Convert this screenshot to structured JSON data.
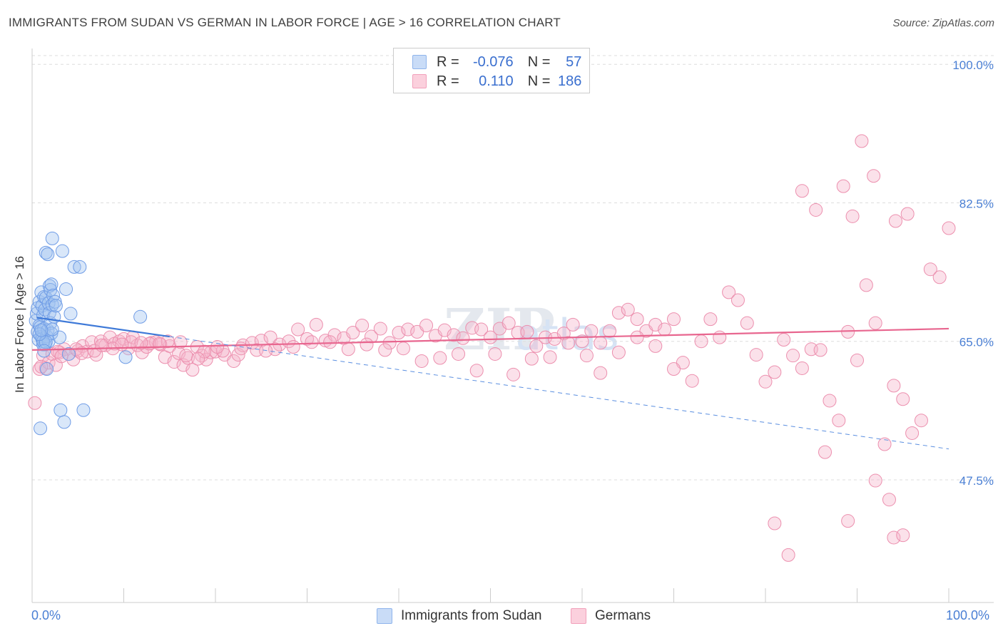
{
  "title": "IMMIGRANTS FROM SUDAN VS GERMAN IN LABOR FORCE | AGE > 16 CORRELATION CHART",
  "source": "Source: ZipAtlas.com",
  "legend": {
    "rows": [
      {
        "r_label": "R =",
        "r_value": "-0.076",
        "n_label": "N =",
        "n_value": "57",
        "color": "#8fb4ec"
      },
      {
        "r_label": "R =",
        "r_value": "0.110",
        "n_label": "N =",
        "n_value": "186",
        "color": "#f2a0bb"
      }
    ]
  },
  "x_min_label": "0.0%",
  "x_max_label": "100.0%",
  "chart_data": {
    "type": "scatter",
    "xlabel": "",
    "ylabel": "In Labor Force | Age > 16",
    "xlim": [
      0,
      100
    ],
    "ylim": [
      32,
      102
    ],
    "y_ticks": [
      100.0,
      82.5,
      65.0,
      47.5
    ],
    "y_tick_labels": [
      "100.0%",
      "82.5%",
      "65.0%",
      "47.5%"
    ],
    "x_tick_labels": [
      "0.0%",
      "100.0%"
    ],
    "grid": true,
    "legend_position": "top-center",
    "series": [
      {
        "name": "Immigrants from Sudan",
        "color": "#8fb4ec",
        "trend": {
          "x": [
            0.5,
            15
          ],
          "y": [
            68.0,
            65.6
          ],
          "dashed_to": [
            100,
            51.4
          ]
        },
        "points": [
          [
            0.4,
            67.6
          ],
          [
            0.5,
            68.5
          ],
          [
            0.6,
            69.2
          ],
          [
            0.6,
            66.2
          ],
          [
            0.7,
            65.2
          ],
          [
            0.8,
            70.0
          ],
          [
            0.8,
            67.0
          ],
          [
            0.9,
            66.8
          ],
          [
            1.0,
            71.2
          ],
          [
            1.0,
            65.6
          ],
          [
            1.1,
            69.5
          ],
          [
            1.1,
            65.3
          ],
          [
            1.2,
            68.3
          ],
          [
            1.2,
            64.6
          ],
          [
            1.3,
            70.6
          ],
          [
            1.3,
            66.6
          ],
          [
            1.4,
            69.0
          ],
          [
            1.4,
            64.6
          ],
          [
            1.5,
            70.5
          ],
          [
            1.5,
            76.2
          ],
          [
            1.6,
            65.6
          ],
          [
            1.6,
            61.5
          ],
          [
            1.7,
            66.4
          ],
          [
            1.7,
            76.0
          ],
          [
            1.8,
            69.8
          ],
          [
            1.8,
            65.0
          ],
          [
            1.9,
            72.0
          ],
          [
            1.9,
            68.6
          ],
          [
            2.0,
            71.5
          ],
          [
            2.0,
            67.3
          ],
          [
            2.1,
            72.2
          ],
          [
            2.1,
            66.0
          ],
          [
            2.2,
            69.6
          ],
          [
            2.2,
            78.0
          ],
          [
            2.3,
            70.8
          ],
          [
            2.4,
            68.1
          ],
          [
            2.5,
            70.0
          ],
          [
            2.6,
            69.5
          ],
          [
            3.0,
            65.5
          ],
          [
            3.1,
            56.3
          ],
          [
            3.3,
            76.4
          ],
          [
            3.5,
            54.8
          ],
          [
            3.7,
            71.6
          ],
          [
            4.0,
            63.4
          ],
          [
            4.2,
            68.5
          ],
          [
            4.6,
            74.4
          ],
          [
            5.2,
            74.4
          ],
          [
            5.6,
            56.3
          ],
          [
            10.2,
            63.0
          ],
          [
            11.8,
            68.1
          ],
          [
            0.9,
            54.0
          ],
          [
            1.2,
            65.0
          ],
          [
            1.5,
            64.9
          ],
          [
            2.2,
            66.5
          ],
          [
            0.8,
            65.9
          ],
          [
            1.0,
            66.4
          ],
          [
            1.3,
            63.8
          ]
        ]
      },
      {
        "name": "Germans",
        "color": "#f2a0bb",
        "trend": {
          "x": [
            0,
            100
          ],
          "y": [
            63.9,
            66.6
          ]
        },
        "points": [
          [
            0.3,
            57.2
          ],
          [
            0.8,
            61.5
          ],
          [
            1.2,
            63.2
          ],
          [
            1.5,
            61.6
          ],
          [
            1.8,
            62.3
          ],
          [
            2.2,
            63.4
          ],
          [
            2.6,
            62.0
          ],
          [
            3.0,
            63.6
          ],
          [
            3.5,
            64.0
          ],
          [
            4.0,
            63.4
          ],
          [
            4.5,
            62.7
          ],
          [
            5.0,
            63.8
          ],
          [
            5.5,
            64.4
          ],
          [
            6.0,
            63.7
          ],
          [
            6.5,
            64.9
          ],
          [
            7.0,
            63.3
          ],
          [
            7.5,
            65.0
          ],
          [
            8.0,
            64.5
          ],
          [
            8.5,
            65.5
          ],
          [
            9.0,
            64.7
          ],
          [
            9.5,
            65.0
          ],
          [
            10.0,
            65.3
          ],
          [
            10.5,
            64.1
          ],
          [
            11.0,
            65.5
          ],
          [
            11.5,
            64.5
          ],
          [
            12.0,
            63.6
          ],
          [
            12.5,
            64.3
          ],
          [
            13.0,
            64.8
          ],
          [
            13.5,
            64.9
          ],
          [
            14.0,
            64.6
          ],
          [
            14.5,
            63.0
          ],
          [
            15.0,
            64.4
          ],
          [
            15.5,
            62.4
          ],
          [
            16.0,
            63.5
          ],
          [
            16.5,
            62.0
          ],
          [
            17.0,
            62.9
          ],
          [
            17.5,
            61.4
          ],
          [
            18.0,
            64.3
          ],
          [
            18.5,
            63.2
          ],
          [
            19.0,
            62.7
          ],
          [
            19.5,
            63.6
          ],
          [
            20.0,
            63.7
          ],
          [
            21.0,
            63.3
          ],
          [
            22.0,
            62.5
          ],
          [
            22.5,
            63.3
          ],
          [
            23.0,
            64.5
          ],
          [
            24.0,
            64.8
          ],
          [
            25.0,
            65.1
          ],
          [
            26.0,
            65.5
          ],
          [
            27.0,
            64.6
          ],
          [
            28.0,
            65.0
          ],
          [
            29.0,
            66.5
          ],
          [
            30.0,
            65.3
          ],
          [
            31.0,
            67.1
          ],
          [
            32.0,
            65.1
          ],
          [
            33.0,
            65.8
          ],
          [
            34.0,
            65.4
          ],
          [
            35.0,
            66.1
          ],
          [
            36.0,
            67.0
          ],
          [
            37.0,
            65.6
          ],
          [
            38.0,
            66.6
          ],
          [
            39.0,
            64.8
          ],
          [
            40.0,
            66.1
          ],
          [
            41.0,
            66.5
          ],
          [
            42.0,
            66.2
          ],
          [
            43.0,
            67.0
          ],
          [
            44.0,
            65.7
          ],
          [
            45.0,
            66.4
          ],
          [
            46.0,
            65.8
          ],
          [
            47.0,
            65.4
          ],
          [
            48.0,
            66.7
          ],
          [
            49.0,
            66.5
          ],
          [
            50.0,
            65.5
          ],
          [
            51.0,
            66.6
          ],
          [
            52.0,
            67.3
          ],
          [
            53.0,
            66.1
          ],
          [
            54.0,
            66.2
          ],
          [
            55.0,
            64.4
          ],
          [
            56.0,
            65.5
          ],
          [
            57.0,
            65.3
          ],
          [
            58.0,
            66.0
          ],
          [
            59.0,
            67.1
          ],
          [
            60.0,
            65.0
          ],
          [
            61.0,
            66.3
          ],
          [
            62.0,
            64.8
          ],
          [
            63.0,
            66.3
          ],
          [
            64.0,
            68.6
          ],
          [
            65.0,
            69.0
          ],
          [
            66.0,
            67.8
          ],
          [
            67.0,
            66.3
          ],
          [
            68.0,
            67.1
          ],
          [
            69.0,
            66.5
          ],
          [
            70.0,
            67.8
          ],
          [
            71.0,
            62.3
          ],
          [
            72.0,
            60.0
          ],
          [
            73.0,
            65.0
          ],
          [
            74.0,
            67.8
          ],
          [
            75.0,
            65.5
          ],
          [
            76.0,
            71.2
          ],
          [
            77.0,
            70.2
          ],
          [
            78.0,
            67.3
          ],
          [
            79.0,
            63.3
          ],
          [
            80.0,
            59.9
          ],
          [
            81.0,
            61.1
          ],
          [
            82.0,
            65.2
          ],
          [
            83.0,
            63.2
          ],
          [
            84.0,
            61.6
          ],
          [
            85.0,
            64.0
          ],
          [
            86.0,
            63.9
          ],
          [
            87.0,
            57.5
          ],
          [
            88.0,
            55.0
          ],
          [
            89.0,
            66.2
          ],
          [
            90.0,
            62.6
          ],
          [
            91.0,
            72.1
          ],
          [
            92.0,
            67.3
          ],
          [
            93.0,
            52.0
          ],
          [
            94.0,
            59.4
          ],
          [
            95.0,
            57.7
          ],
          [
            96.0,
            53.4
          ],
          [
            97.0,
            55.0
          ],
          [
            98.0,
            74.1
          ],
          [
            99.0,
            73.1
          ],
          [
            100.0,
            79.3
          ],
          [
            84.0,
            84.0
          ],
          [
            85.5,
            81.6
          ],
          [
            88.5,
            84.6
          ],
          [
            89.5,
            80.8
          ],
          [
            90.5,
            90.3
          ],
          [
            91.8,
            85.9
          ],
          [
            94.2,
            80.2
          ],
          [
            95.5,
            81.1
          ],
          [
            86.5,
            51.0
          ],
          [
            89.0,
            42.3
          ],
          [
            92.0,
            47.4
          ],
          [
            93.5,
            45.0
          ],
          [
            94.0,
            40.2
          ],
          [
            81.0,
            42.0
          ],
          [
            82.5,
            38.0
          ],
          [
            95.0,
            40.5
          ],
          [
            70.0,
            61.5
          ],
          [
            68.0,
            64.4
          ],
          [
            66.0,
            65.5
          ],
          [
            64.0,
            63.6
          ],
          [
            62.0,
            61.0
          ],
          [
            60.5,
            63.2
          ],
          [
            58.5,
            64.8
          ],
          [
            56.5,
            63.0
          ],
          [
            54.5,
            62.8
          ],
          [
            52.5,
            60.8
          ],
          [
            50.5,
            63.4
          ],
          [
            48.5,
            61.3
          ],
          [
            46.5,
            63.4
          ],
          [
            44.5,
            62.9
          ],
          [
            42.5,
            62.5
          ],
          [
            40.5,
            64.1
          ],
          [
            38.5,
            63.9
          ],
          [
            36.5,
            64.6
          ],
          [
            34.5,
            64.0
          ],
          [
            32.5,
            64.9
          ],
          [
            30.5,
            64.9
          ],
          [
            28.5,
            64.3
          ],
          [
            26.5,
            64.0
          ],
          [
            24.5,
            63.9
          ],
          [
            22.8,
            64.1
          ],
          [
            20.8,
            63.8
          ],
          [
            18.8,
            63.7
          ],
          [
            16.8,
            63.2
          ],
          [
            14.8,
            65.0
          ],
          [
            12.8,
            64.7
          ],
          [
            10.8,
            64.9
          ],
          [
            8.8,
            64.1
          ],
          [
            6.8,
            63.8
          ],
          [
            4.8,
            64.0
          ],
          [
            2.8,
            63.7
          ],
          [
            1.0,
            61.8
          ],
          [
            3.2,
            63.1
          ],
          [
            5.4,
            63.5
          ],
          [
            7.6,
            64.5
          ],
          [
            9.8,
            64.6
          ],
          [
            11.9,
            64.8
          ],
          [
            13.9,
            64.7
          ],
          [
            16.2,
            64.9
          ],
          [
            18.1,
            62.8
          ],
          [
            20.2,
            64.3
          ],
          [
            25.5,
            63.8
          ]
        ]
      }
    ]
  }
}
